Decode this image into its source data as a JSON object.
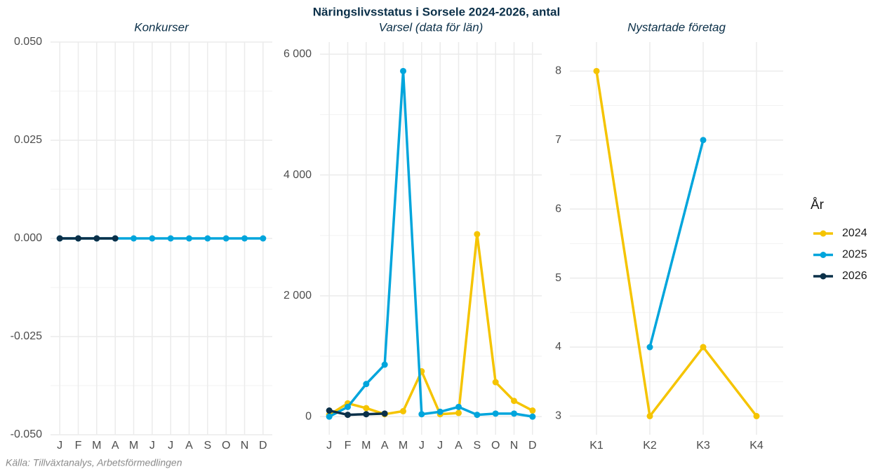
{
  "title": "Näringslivsstatus i Sorsele 2024-2026, antal",
  "caption": "Källa: Tillväxtanalys, Arbetsförmedlingen",
  "legend_title": "År",
  "chart_data": [
    {
      "type": "line",
      "title": "Konkurser",
      "grid": true,
      "categories": [
        "J",
        "F",
        "M",
        "A",
        "M",
        "J",
        "J",
        "A",
        "S",
        "O",
        "N",
        "D"
      ],
      "ylim": [
        -0.05,
        0.05
      ],
      "yticks": [
        {
          "value": -0.05,
          "label": "-0.050"
        },
        {
          "value": -0.025,
          "label": "-0.025"
        },
        {
          "value": 0,
          "label": "0.000"
        },
        {
          "value": 0.025,
          "label": "0.025"
        },
        {
          "value": 0.05,
          "label": "0.050"
        }
      ],
      "series": [
        {
          "name": "2025",
          "color": "#00a5dc",
          "values": [
            0,
            0,
            0,
            0,
            0,
            0,
            0,
            0,
            0,
            0,
            0,
            0
          ]
        },
        {
          "name": "2026",
          "color": "#0b3049",
          "values": [
            0,
            0,
            0,
            0,
            null,
            null,
            null,
            null,
            null,
            null,
            null,
            null
          ]
        }
      ]
    },
    {
      "type": "line",
      "title": "Varsel (data för län)",
      "grid": true,
      "categories": [
        "J",
        "F",
        "M",
        "A",
        "M",
        "J",
        "J",
        "A",
        "S",
        "O",
        "N",
        "D"
      ],
      "ylim": [
        -300,
        6200
      ],
      "yticks": [
        0,
        {
          "value": 2000,
          "label": "2 000"
        },
        {
          "value": 4000,
          "label": "4 000"
        },
        {
          "value": 6000,
          "label": "6 000"
        }
      ],
      "series": [
        {
          "name": "2024",
          "color": "#f5c400",
          "values": [
            30,
            220,
            140,
            40,
            90,
            750,
            40,
            60,
            3020,
            570,
            260,
            100
          ]
        },
        {
          "name": "2025",
          "color": "#00a5dc",
          "values": [
            0,
            160,
            540,
            860,
            5720,
            40,
            80,
            160,
            30,
            50,
            50,
            0
          ]
        },
        {
          "name": "2026",
          "color": "#0b3049",
          "values": [
            100,
            30,
            40,
            50,
            null,
            null,
            null,
            null,
            null,
            null,
            null,
            null
          ]
        }
      ]
    },
    {
      "type": "line",
      "title": "Nystartade företag",
      "grid": true,
      "categories": [
        "K1",
        "K2",
        "K3",
        "K4"
      ],
      "ylim": [
        2.73,
        8.42
      ],
      "yticks": [
        3,
        4,
        5,
        6,
        7,
        8
      ],
      "series": [
        {
          "name": "2024",
          "color": "#f5c400",
          "values": [
            8,
            3,
            4,
            3
          ]
        },
        {
          "name": "2025",
          "color": "#00a5dc",
          "values": [
            null,
            4,
            7,
            null
          ]
        }
      ]
    }
  ]
}
